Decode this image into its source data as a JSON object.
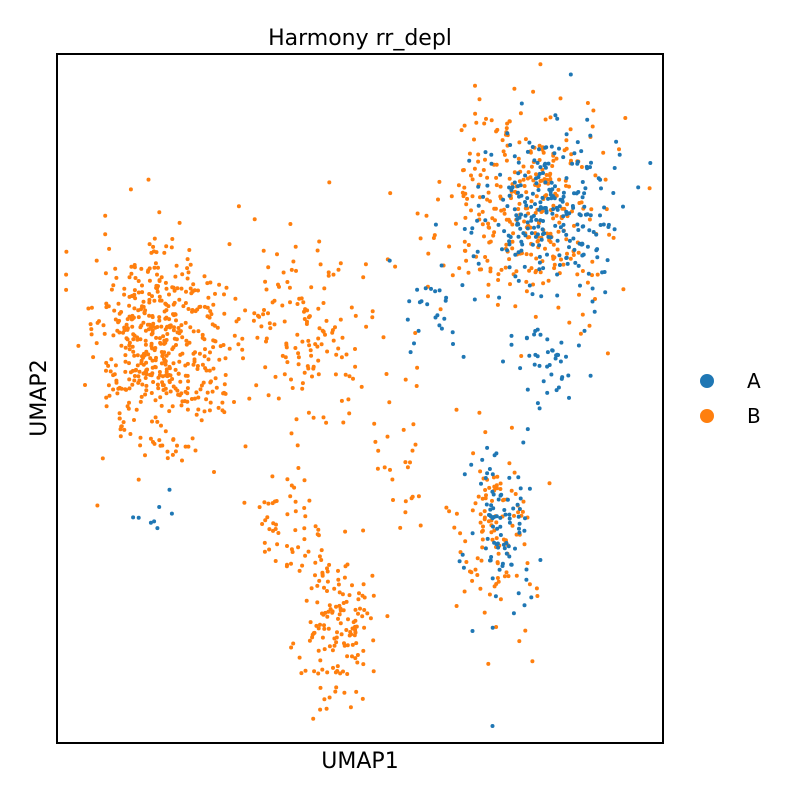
{
  "chart_data": {
    "type": "scatter",
    "title": "Harmony rr_depl",
    "xlabel": "UMAP1",
    "ylabel": "UMAP2",
    "xlim": [
      0,
      10
    ],
    "ylim": [
      0,
      10
    ],
    "ticks_shown": false,
    "grid": false,
    "legend_placement": "right",
    "series": [
      {
        "name": "A",
        "color": "#1f77b4",
        "clusters": [
          {
            "cx": 8.1,
            "cy": 7.7,
            "sx": 0.8,
            "sy": 0.9,
            "n": 260
          },
          {
            "cx": 7.3,
            "cy": 3.1,
            "sx": 0.4,
            "sy": 0.95,
            "n": 90
          },
          {
            "cx": 8.2,
            "cy": 5.6,
            "sx": 0.4,
            "sy": 0.35,
            "n": 40
          },
          {
            "cx": 6.2,
            "cy": 6.4,
            "sx": 0.35,
            "sy": 0.45,
            "n": 25
          },
          {
            "cx": 1.8,
            "cy": 3.3,
            "sx": 0.3,
            "sy": 0.25,
            "n": 8
          }
        ]
      },
      {
        "name": "B",
        "color": "#ff7f0e",
        "clusters": [
          {
            "cx": 1.7,
            "cy": 5.7,
            "sx": 0.7,
            "sy": 1.0,
            "n": 520
          },
          {
            "cx": 4.0,
            "cy": 6.0,
            "sx": 0.9,
            "sy": 0.9,
            "n": 160
          },
          {
            "cx": 7.8,
            "cy": 7.8,
            "sx": 0.85,
            "sy": 1.0,
            "n": 330
          },
          {
            "cx": 7.2,
            "cy": 3.1,
            "sx": 0.4,
            "sy": 1.0,
            "n": 110
          },
          {
            "cx": 4.6,
            "cy": 1.8,
            "sx": 0.4,
            "sy": 0.8,
            "n": 150
          },
          {
            "cx": 3.8,
            "cy": 3.2,
            "sx": 0.4,
            "sy": 0.5,
            "n": 50
          },
          {
            "cx": 5.7,
            "cy": 4.3,
            "sx": 0.55,
            "sy": 1.1,
            "n": 30
          }
        ]
      }
    ]
  }
}
